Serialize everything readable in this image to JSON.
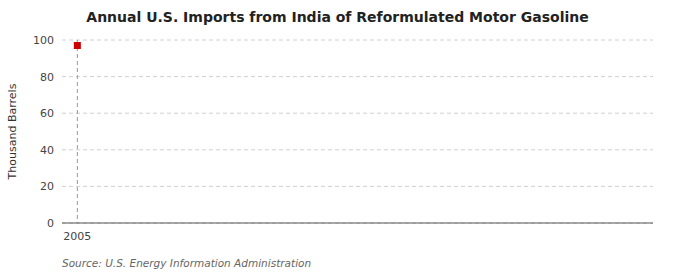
{
  "chart_data": {
    "type": "scatter",
    "title": "Annual U.S. Imports from India of Reformulated Motor Gasoline",
    "ylabel": "Thousand Barrels",
    "source": "Source: U.S. Energy Information Administration",
    "x": [
      2005
    ],
    "values": [
      97
    ],
    "color": "#cc0000",
    "marker": "square",
    "xlim": [
      2004.6,
      2020
    ],
    "xticks": [
      2005
    ],
    "ylim": [
      0,
      100
    ],
    "yticks": [
      0,
      20,
      40,
      60,
      80,
      100
    ],
    "grid": true
  }
}
